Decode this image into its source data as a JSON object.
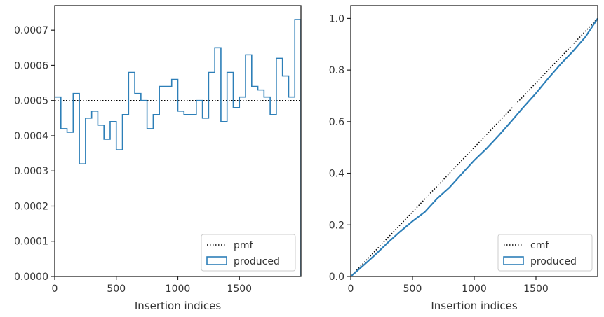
{
  "colors": {
    "produced": "#2d7fb8",
    "reference": "#000000",
    "frame": "#222222",
    "text": "#333333"
  },
  "chart_data": [
    {
      "type": "step",
      "xlabel": "Insertion indices",
      "ylabel": "",
      "xlim": [
        0,
        2000
      ],
      "ylim": [
        0,
        0.00077
      ],
      "xticks": [
        {
          "value": 0,
          "label": "0"
        },
        {
          "value": 500,
          "label": "500"
        },
        {
          "value": 1000,
          "label": "1000"
        },
        {
          "value": 1500,
          "label": "1500"
        }
      ],
      "yticks": [
        {
          "value": 0,
          "label": "0.0000"
        },
        {
          "value": 0.0001,
          "label": "0.0001"
        },
        {
          "value": 0.0002,
          "label": "0.0002"
        },
        {
          "value": 0.0003,
          "label": "0.0003"
        },
        {
          "value": 0.0004,
          "label": "0.0004"
        },
        {
          "value": 0.0005,
          "label": "0.0005"
        },
        {
          "value": 0.0006,
          "label": "0.0006"
        },
        {
          "value": 0.0007,
          "label": "0.0007"
        }
      ],
      "legend_position": "lower-right",
      "series": [
        {
          "name": "pmf",
          "style": "dotted",
          "x": [
            0,
            2000
          ],
          "y": [
            0.0005,
            0.0005
          ]
        },
        {
          "name": "produced",
          "style": "step-histogram",
          "bin_width": 50,
          "bin_starts": [
            0,
            50,
            100,
            150,
            200,
            250,
            300,
            350,
            400,
            450,
            500,
            550,
            600,
            650,
            700,
            750,
            800,
            850,
            900,
            950,
            1000,
            1050,
            1100,
            1150,
            1200,
            1250,
            1300,
            1350,
            1400,
            1450,
            1500,
            1550,
            1600,
            1650,
            1700,
            1750,
            1800,
            1850,
            1900,
            1950
          ],
          "values": [
            0.00051,
            0.00042,
            0.00041,
            0.00052,
            0.00032,
            0.00045,
            0.00047,
            0.00043,
            0.00039,
            0.00044,
            0.00036,
            0.00046,
            0.00058,
            0.00052,
            0.0005,
            0.00042,
            0.00046,
            0.00054,
            0.00054,
            0.00056,
            0.00047,
            0.00046,
            0.00046,
            0.0005,
            0.00045,
            0.00058,
            0.00065,
            0.00044,
            0.00058,
            0.00048,
            0.00051,
            0.00063,
            0.00054,
            0.00053,
            0.00051,
            0.00046,
            0.00062,
            0.00057,
            0.00051,
            0.00073
          ]
        }
      ]
    },
    {
      "type": "line",
      "xlabel": "Insertion indices",
      "ylabel": "",
      "xlim": [
        0,
        2000
      ],
      "ylim": [
        0,
        1.05
      ],
      "xticks": [
        {
          "value": 0,
          "label": "0"
        },
        {
          "value": 500,
          "label": "500"
        },
        {
          "value": 1000,
          "label": "1000"
        },
        {
          "value": 1500,
          "label": "1500"
        }
      ],
      "yticks": [
        {
          "value": 0,
          "label": "0.0"
        },
        {
          "value": 0.2,
          "label": "0.2"
        },
        {
          "value": 0.4,
          "label": "0.4"
        },
        {
          "value": 0.6,
          "label": "0.6"
        },
        {
          "value": 0.8,
          "label": "0.8"
        },
        {
          "value": 1.0,
          "label": "1.0"
        }
      ],
      "legend_position": "lower-right",
      "series": [
        {
          "name": "cmf",
          "style": "dotted",
          "x": [
            0,
            2000
          ],
          "y": [
            0,
            1.0
          ]
        },
        {
          "name": "produced",
          "style": "solid",
          "x": [
            0,
            100,
            200,
            300,
            400,
            500,
            600,
            700,
            800,
            900,
            1000,
            1100,
            1200,
            1300,
            1400,
            1500,
            1600,
            1700,
            1800,
            1900,
            2000
          ],
          "y": [
            0,
            0.042,
            0.085,
            0.131,
            0.174,
            0.214,
            0.25,
            0.302,
            0.345,
            0.398,
            0.45,
            0.496,
            0.547,
            0.601,
            0.657,
            0.71,
            0.768,
            0.823,
            0.873,
            0.928,
            1.0
          ]
        }
      ]
    }
  ]
}
